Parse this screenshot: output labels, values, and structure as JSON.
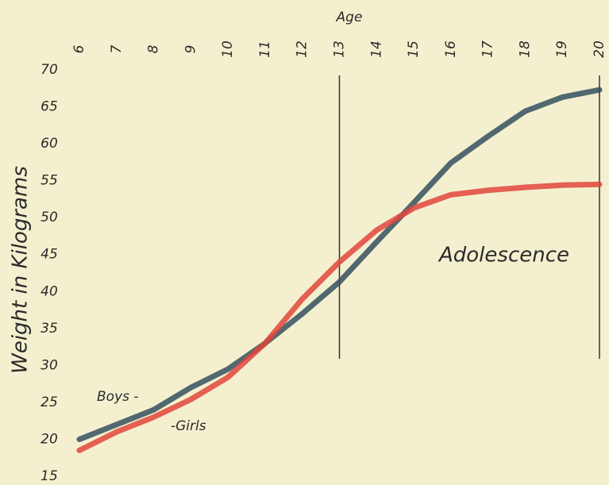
{
  "chart_data": {
    "type": "line",
    "title": "Age",
    "y_label": "Weight in Kilograms",
    "x": [
      6,
      7,
      8,
      9,
      10,
      11,
      12,
      13,
      14,
      15,
      16,
      17,
      18,
      19,
      20
    ],
    "series": [
      {
        "name": "Boys -",
        "color": "#34505f",
        "values": [
          20,
          22,
          24,
          27,
          29.5,
          33,
          37,
          41.3,
          46.7,
          52,
          57.4,
          61,
          64.4,
          66.3,
          67.3
        ]
      },
      {
        "name": "-Girls",
        "color": "#e0473c",
        "values": [
          18.5,
          21,
          23,
          25.4,
          28.4,
          33,
          39,
          44,
          48.3,
          51.3,
          53.1,
          53.7,
          54.1,
          54.4,
          54.5
        ]
      }
    ],
    "annotation": "Adolescence",
    "vlines": [
      13,
      20
    ],
    "xlim": [
      6,
      20
    ],
    "xticks": [
      6,
      7,
      8,
      9,
      10,
      11,
      12,
      13,
      14,
      15,
      16,
      17,
      18,
      19,
      20
    ],
    "ylim": [
      15,
      70
    ],
    "yticks": [
      15,
      20,
      25,
      30,
      35,
      40,
      45,
      50,
      55,
      60,
      65,
      70
    ]
  }
}
